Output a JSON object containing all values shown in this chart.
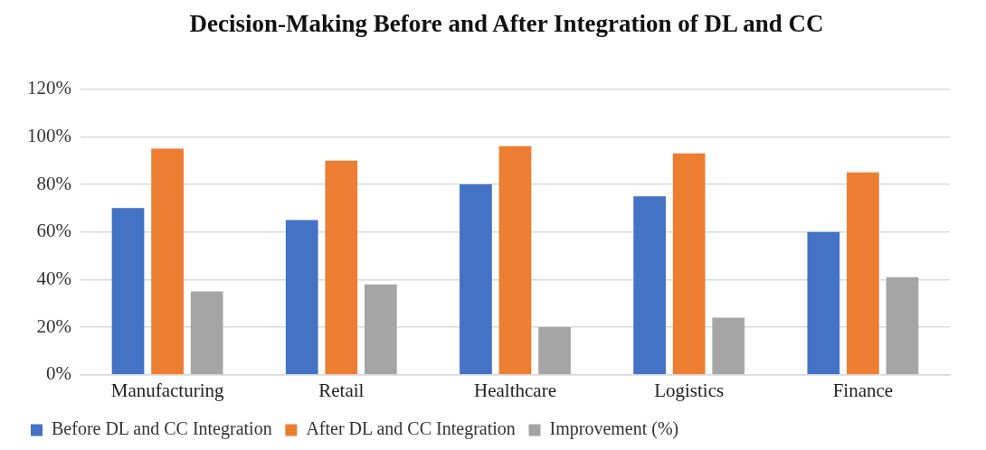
{
  "chart_data": {
    "type": "bar",
    "title": "Decision-Making Before and After Integration of DL and CC",
    "categories": [
      "Manufacturing",
      "Retail",
      "Healthcare",
      "Logistics",
      "Finance"
    ],
    "series": [
      {
        "name": "Before DL and CC Integration",
        "color": "#4472c4",
        "values": [
          70,
          65,
          80,
          75,
          60
        ]
      },
      {
        "name": "After DL and CC Integration",
        "color": "#ed7d31",
        "values": [
          95,
          90,
          96,
          93,
          85
        ]
      },
      {
        "name": "Improvement (%)",
        "color": "#a5a5a5",
        "values": [
          35,
          38,
          20,
          24,
          41
        ]
      }
    ],
    "ylim": [
      0,
      120
    ],
    "yticks": [
      {
        "value": 0,
        "label": "0%"
      },
      {
        "value": 20,
        "label": "20%"
      },
      {
        "value": 40,
        "label": "40%"
      },
      {
        "value": 60,
        "label": "60%"
      },
      {
        "value": 80,
        "label": "80%"
      },
      {
        "value": 100,
        "label": "100%"
      },
      {
        "value": 120,
        "label": "120%"
      }
    ],
    "grid": "y",
    "legend": "bottom"
  }
}
